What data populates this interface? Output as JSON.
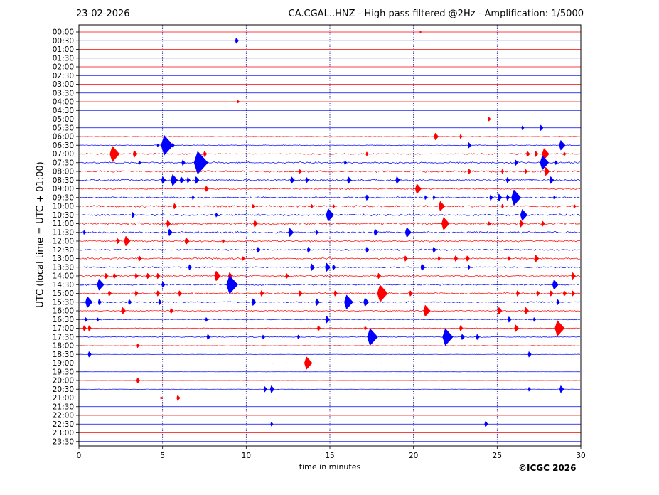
{
  "header": {
    "date": "23-02-2026",
    "title": "CA.CGAL..HNZ - High pass filtered @2Hz - Amplification: 1/5000"
  },
  "credit": "©ICGC 2026",
  "chart_data": {
    "type": "line",
    "title": "CA.CGAL..HNZ - High pass filtered @2Hz - Amplification: 1/5000",
    "xlabel": "time in minutes",
    "ylabel": "UTC (local time = UTC + 01:00)",
    "xlim": [
      0,
      30
    ],
    "x_ticks": [
      0,
      5,
      10,
      15,
      20,
      25,
      30
    ],
    "grid": "vertical dotted at 5, 10, 15, 20, 25",
    "row_labels": [
      "00:00",
      "00:30",
      "01:00",
      "01:30",
      "02:00",
      "02:30",
      "03:00",
      "03:30",
      "04:00",
      "04:30",
      "05:00",
      "05:30",
      "06:00",
      "06:30",
      "07:00",
      "07:30",
      "08:00",
      "08:30",
      "09:00",
      "09:30",
      "10:00",
      "10:30",
      "11:00",
      "11:30",
      "12:00",
      "12:30",
      "13:00",
      "13:30",
      "14:00",
      "14:30",
      "15:00",
      "15:30",
      "16:00",
      "16:30",
      "17:00",
      "17:30",
      "18:00",
      "18:30",
      "19:00",
      "19:30",
      "20:00",
      "20:30",
      "21:00",
      "21:30",
      "22:00",
      "22:30",
      "23:00",
      "23:30"
    ],
    "colors": [
      "#ff0000",
      "#0000ff"
    ],
    "noise": [
      0,
      0,
      0,
      0,
      0,
      0,
      0,
      0,
      0,
      0,
      0,
      0,
      0.3,
      0.5,
      0.8,
      1.0,
      1.2,
      1.2,
      1.0,
      1.0,
      1.2,
      1.2,
      1.3,
      1.2,
      1.0,
      1.0,
      1.0,
      0.9,
      1.0,
      1.0,
      1.0,
      0.9,
      0.8,
      0.6,
      0.5,
      0.6,
      0.3,
      0.2,
      0.2,
      0.1,
      0.1,
      0.2,
      0.1,
      0,
      0,
      0,
      0,
      0
    ],
    "events": [
      [
        0,
        20.4,
        1
      ],
      [
        1,
        9.4,
        4
      ],
      [
        8,
        9.5,
        2
      ],
      [
        10,
        24.5,
        3
      ],
      [
        11,
        26.5,
        3
      ],
      [
        11,
        27.6,
        4
      ],
      [
        12,
        21.3,
        5
      ],
      [
        12,
        22.8,
        3
      ],
      [
        13,
        4.7,
        2
      ],
      [
        13,
        5.1,
        14
      ],
      [
        13,
        5.6,
        3
      ],
      [
        13,
        23.3,
        4
      ],
      [
        13,
        28.8,
        7
      ],
      [
        14,
        2.0,
        11
      ],
      [
        14,
        3.3,
        5
      ],
      [
        14,
        7.5,
        4
      ],
      [
        14,
        17.2,
        3
      ],
      [
        14,
        26.8,
        4
      ],
      [
        14,
        27.3,
        4
      ],
      [
        14,
        27.8,
        8
      ],
      [
        14,
        29.0,
        3
      ],
      [
        15,
        3.6,
        3
      ],
      [
        15,
        6.2,
        4
      ],
      [
        15,
        7.1,
        16
      ],
      [
        15,
        15.9,
        3
      ],
      [
        15,
        26.1,
        4
      ],
      [
        15,
        27.7,
        10
      ],
      [
        15,
        28.5,
        3
      ],
      [
        16,
        13.2,
        3
      ],
      [
        16,
        23.3,
        4
      ],
      [
        16,
        25.3,
        3
      ],
      [
        16,
        26.7,
        3
      ],
      [
        16,
        27.9,
        6
      ],
      [
        17,
        5.0,
        5
      ],
      [
        17,
        5.6,
        8
      ],
      [
        17,
        6.1,
        5
      ],
      [
        17,
        6.5,
        4
      ],
      [
        17,
        7.0,
        5
      ],
      [
        17,
        12.7,
        5
      ],
      [
        17,
        13.6,
        4
      ],
      [
        17,
        16.1,
        5
      ],
      [
        17,
        19.0,
        5
      ],
      [
        17,
        25.6,
        4
      ],
      [
        17,
        28.2,
        5
      ],
      [
        18,
        7.6,
        4
      ],
      [
        18,
        20.2,
        7
      ],
      [
        19,
        6.8,
        3
      ],
      [
        19,
        17.2,
        4
      ],
      [
        19,
        20.7,
        3
      ],
      [
        19,
        21.2,
        3
      ],
      [
        19,
        24.6,
        4
      ],
      [
        19,
        25.1,
        5
      ],
      [
        19,
        25.6,
        4
      ],
      [
        19,
        26.0,
        11
      ],
      [
        19,
        28.4,
        3
      ],
      [
        20,
        5.7,
        4
      ],
      [
        20,
        10.4,
        3
      ],
      [
        20,
        13.9,
        3
      ],
      [
        20,
        15.2,
        3
      ],
      [
        20,
        21.6,
        7
      ],
      [
        20,
        25.3,
        3
      ],
      [
        20,
        29.6,
        3
      ],
      [
        21,
        3.2,
        4
      ],
      [
        21,
        8.2,
        3
      ],
      [
        21,
        14.9,
        9
      ],
      [
        21,
        26.5,
        8
      ],
      [
        22,
        5.3,
        5
      ],
      [
        22,
        10.5,
        5
      ],
      [
        22,
        21.8,
        9
      ],
      [
        22,
        24.5,
        3
      ],
      [
        22,
        26.4,
        5
      ],
      [
        22,
        27.7,
        4
      ],
      [
        23,
        0.3,
        3
      ],
      [
        23,
        5.4,
        5
      ],
      [
        23,
        12.6,
        6
      ],
      [
        23,
        14.2,
        3
      ],
      [
        23,
        17.7,
        5
      ],
      [
        23,
        19.6,
        7
      ],
      [
        24,
        2.3,
        4
      ],
      [
        24,
        2.8,
        7
      ],
      [
        24,
        6.4,
        5
      ],
      [
        24,
        8.6,
        3
      ],
      [
        25,
        10.7,
        4
      ],
      [
        25,
        13.7,
        4
      ],
      [
        25,
        17.2,
        4
      ],
      [
        25,
        21.2,
        4
      ],
      [
        26,
        3.6,
        4
      ],
      [
        26,
        9.8,
        3
      ],
      [
        26,
        19.5,
        4
      ],
      [
        26,
        21.5,
        3
      ],
      [
        26,
        22.5,
        4
      ],
      [
        26,
        23.2,
        4
      ],
      [
        26,
        25.7,
        3
      ],
      [
        26,
        27.3,
        5
      ],
      [
        27,
        6.6,
        4
      ],
      [
        27,
        13.9,
        5
      ],
      [
        27,
        14.8,
        6
      ],
      [
        27,
        15.2,
        4
      ],
      [
        27,
        20.5,
        5
      ],
      [
        27,
        23.3,
        3
      ],
      [
        28,
        1.6,
        4
      ],
      [
        28,
        2.1,
        4
      ],
      [
        28,
        3.4,
        4
      ],
      [
        28,
        4.1,
        4
      ],
      [
        28,
        4.7,
        4
      ],
      [
        28,
        8.2,
        7
      ],
      [
        28,
        9.0,
        5
      ],
      [
        28,
        12.4,
        4
      ],
      [
        28,
        17.9,
        4
      ],
      [
        28,
        29.5,
        5
      ],
      [
        29,
        1.2,
        8
      ],
      [
        29,
        5.0,
        4
      ],
      [
        29,
        9.0,
        13
      ],
      [
        29,
        28.4,
        7
      ],
      [
        30,
        1.8,
        4
      ],
      [
        30,
        3.4,
        4
      ],
      [
        30,
        4.7,
        4
      ],
      [
        30,
        6.0,
        4
      ],
      [
        30,
        10.9,
        4
      ],
      [
        30,
        13.2,
        4
      ],
      [
        30,
        15.3,
        4
      ],
      [
        30,
        18.0,
        12
      ],
      [
        30,
        19.8,
        4
      ],
      [
        30,
        26.2,
        4
      ],
      [
        30,
        27.4,
        4
      ],
      [
        30,
        28.2,
        4
      ],
      [
        30,
        29.0,
        4
      ],
      [
        30,
        29.5,
        4
      ],
      [
        31,
        0.5,
        8
      ],
      [
        31,
        1.2,
        4
      ],
      [
        31,
        3.0,
        4
      ],
      [
        31,
        4.8,
        4
      ],
      [
        31,
        10.4,
        5
      ],
      [
        31,
        14.2,
        5
      ],
      [
        31,
        16.0,
        10
      ],
      [
        31,
        17.1,
        6
      ],
      [
        31,
        28.6,
        4
      ],
      [
        32,
        2.6,
        5
      ],
      [
        32,
        5.5,
        4
      ],
      [
        32,
        20.7,
        8
      ],
      [
        32,
        25.1,
        5
      ],
      [
        32,
        26.7,
        5
      ],
      [
        33,
        0.4,
        3
      ],
      [
        33,
        1.1,
        3
      ],
      [
        33,
        7.6,
        3
      ],
      [
        33,
        14.8,
        5
      ],
      [
        33,
        25.7,
        4
      ],
      [
        33,
        27.2,
        3
      ],
      [
        34,
        0.3,
        4
      ],
      [
        34,
        0.6,
        4
      ],
      [
        34,
        14.3,
        4
      ],
      [
        34,
        17.1,
        3
      ],
      [
        34,
        22.8,
        4
      ],
      [
        34,
        26.1,
        5
      ],
      [
        34,
        28.6,
        11
      ],
      [
        35,
        7.7,
        4
      ],
      [
        35,
        11.0,
        3
      ],
      [
        35,
        13.1,
        3
      ],
      [
        35,
        17.4,
        12
      ],
      [
        35,
        21.9,
        12
      ],
      [
        35,
        22.9,
        4
      ],
      [
        35,
        23.8,
        4
      ],
      [
        36,
        3.5,
        3
      ],
      [
        37,
        0.6,
        4
      ],
      [
        37,
        26.9,
        4
      ],
      [
        38,
        13.6,
        9
      ],
      [
        40,
        3.5,
        4
      ],
      [
        41,
        11.1,
        4
      ],
      [
        41,
        11.5,
        5
      ],
      [
        41,
        26.9,
        3
      ],
      [
        41,
        28.8,
        5
      ],
      [
        42,
        4.9,
        2
      ],
      [
        42,
        5.9,
        4
      ],
      [
        45,
        11.5,
        3
      ],
      [
        45,
        24.3,
        4
      ]
    ]
  }
}
